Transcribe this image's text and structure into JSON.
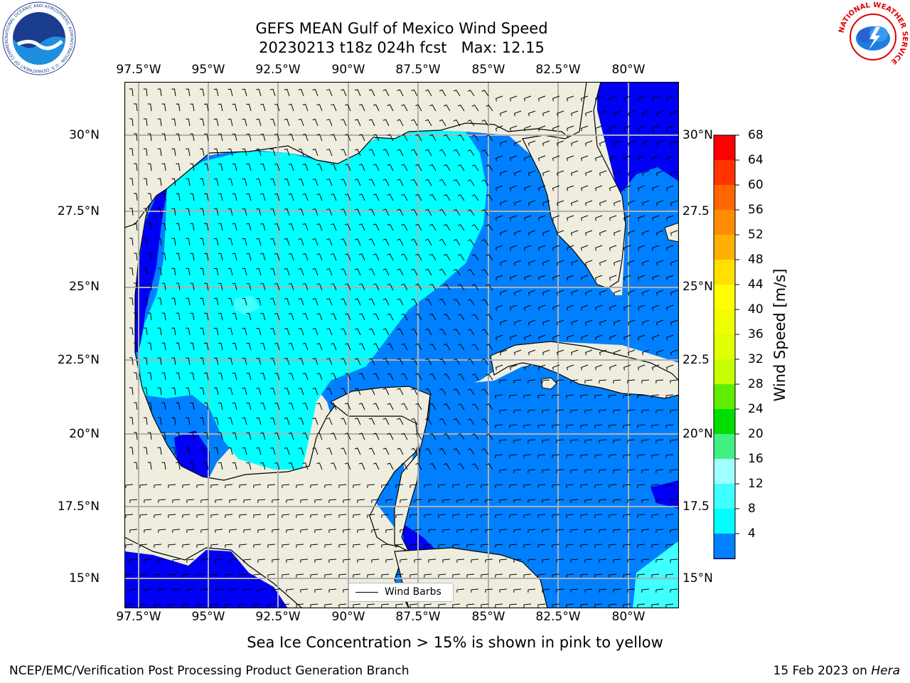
{
  "title": {
    "line1": "GEFS MEAN Gulf of Mexico Wind Speed",
    "line2": "20230213 t18z 024h fcst   Max: 12.15"
  },
  "map": {
    "lon_ticks": [
      "97.5°W",
      "95°W",
      "92.5°W",
      "90°W",
      "87.5°W",
      "85°W",
      "82.5°W",
      "80°W"
    ],
    "lat_ticks_left": [
      "30°N",
      "27.5°N",
      "25°N",
      "22.5°N",
      "20°N",
      "17.5°N",
      "15°N"
    ],
    "lat_ticks_right": [
      "30°N",
      "27.5",
      "25°N",
      "22.5",
      "20°N",
      "17.5",
      "15°N"
    ],
    "colors": {
      "land": "#efedde",
      "water_4_8": "#0080ff",
      "water_0_4": "#0000f5",
      "water_8_12": "#00ffff",
      "water_12_16": "#40ffff",
      "grid": "#b0b0b0",
      "coast": "#000000"
    },
    "legend_label": "Wind Barbs"
  },
  "colorbar": {
    "label": "Wind Speed [m/s]",
    "ticks": [
      "68",
      "64",
      "60",
      "56",
      "52",
      "48",
      "44",
      "40",
      "36",
      "32",
      "28",
      "24",
      "20",
      "16",
      "12",
      "8",
      "4"
    ],
    "colors": [
      "#ff0000",
      "#ff3300",
      "#ff6600",
      "#ff8c00",
      "#ffb000",
      "#ffe000",
      "#ffff00",
      "#f0ff00",
      "#e0ff00",
      "#c8ff00",
      "#60ee00",
      "#00dd00",
      "#40f080",
      "#a0ffff",
      "#40ffff",
      "#00ffff",
      "#0080ff"
    ],
    "extend_color": "#0000f5"
  },
  "logos": {
    "noara_text": "NOAA",
    "noaa_ring_text": "NATIONAL OCEANIC AND ATMOSPHERIC ADMINISTRATION · U.S. DEPARTMENT OF COMMERCE",
    "nws_ring_text": "NATIONAL WEATHER SERVICE"
  },
  "footer": {
    "note": "Sea Ice Concentration > 15% is shown in pink to yellow",
    "left": "NCEP/EMC/Verification Post Processing Product Generation Branch",
    "right_date": "15 Feb 2023 on ",
    "right_machine": "Hera"
  }
}
